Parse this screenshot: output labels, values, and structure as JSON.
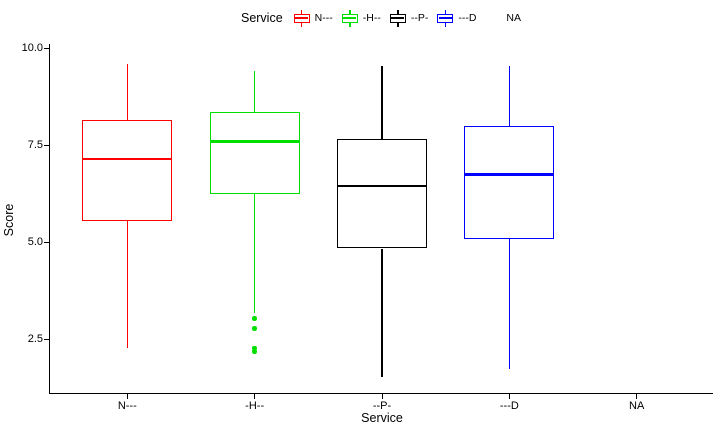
{
  "chart_data": {
    "type": "boxplot",
    "title": "",
    "xlabel": "Service",
    "ylabel": "Score",
    "grid": false,
    "panel_border": false,
    "legend": {
      "title": "Service",
      "position": "top"
    },
    "y_axis": {
      "ticks": [
        10.0,
        7.5,
        5.0,
        2.5
      ],
      "tick_labels": [
        "10.0",
        "7.5",
        "5.0",
        "2.5"
      ],
      "range": [
        1.1,
        10.15
      ]
    },
    "x_axis": {
      "categories": [
        "N---",
        "-H--",
        "--P-",
        "---D",
        "NA"
      ]
    },
    "series": [
      {
        "name": "N---",
        "color": "#ff0000",
        "stats": {
          "min": 2.3,
          "q1": 5.55,
          "median": 7.15,
          "q3": 8.15,
          "max": 9.6
        },
        "outliers": []
      },
      {
        "name": "-H--",
        "color": "#00e000",
        "stats": {
          "min": 3.2,
          "q1": 6.25,
          "median": 7.6,
          "q3": 8.35,
          "max": 9.4
        },
        "outliers": [
          3.05,
          2.8,
          2.3,
          2.2
        ]
      },
      {
        "name": "--P-",
        "color": "#000000",
        "stats": {
          "min": 1.55,
          "q1": 4.85,
          "median": 6.45,
          "q3": 7.65,
          "max": 9.55
        },
        "outliers": []
      },
      {
        "name": "---D",
        "color": "#0000ff",
        "stats": {
          "min": 1.75,
          "q1": 5.1,
          "median": 6.75,
          "q3": 8.0,
          "max": 9.55
        },
        "outliers": []
      },
      {
        "name": "NA",
        "color": null,
        "stats": null,
        "outliers": []
      }
    ]
  }
}
